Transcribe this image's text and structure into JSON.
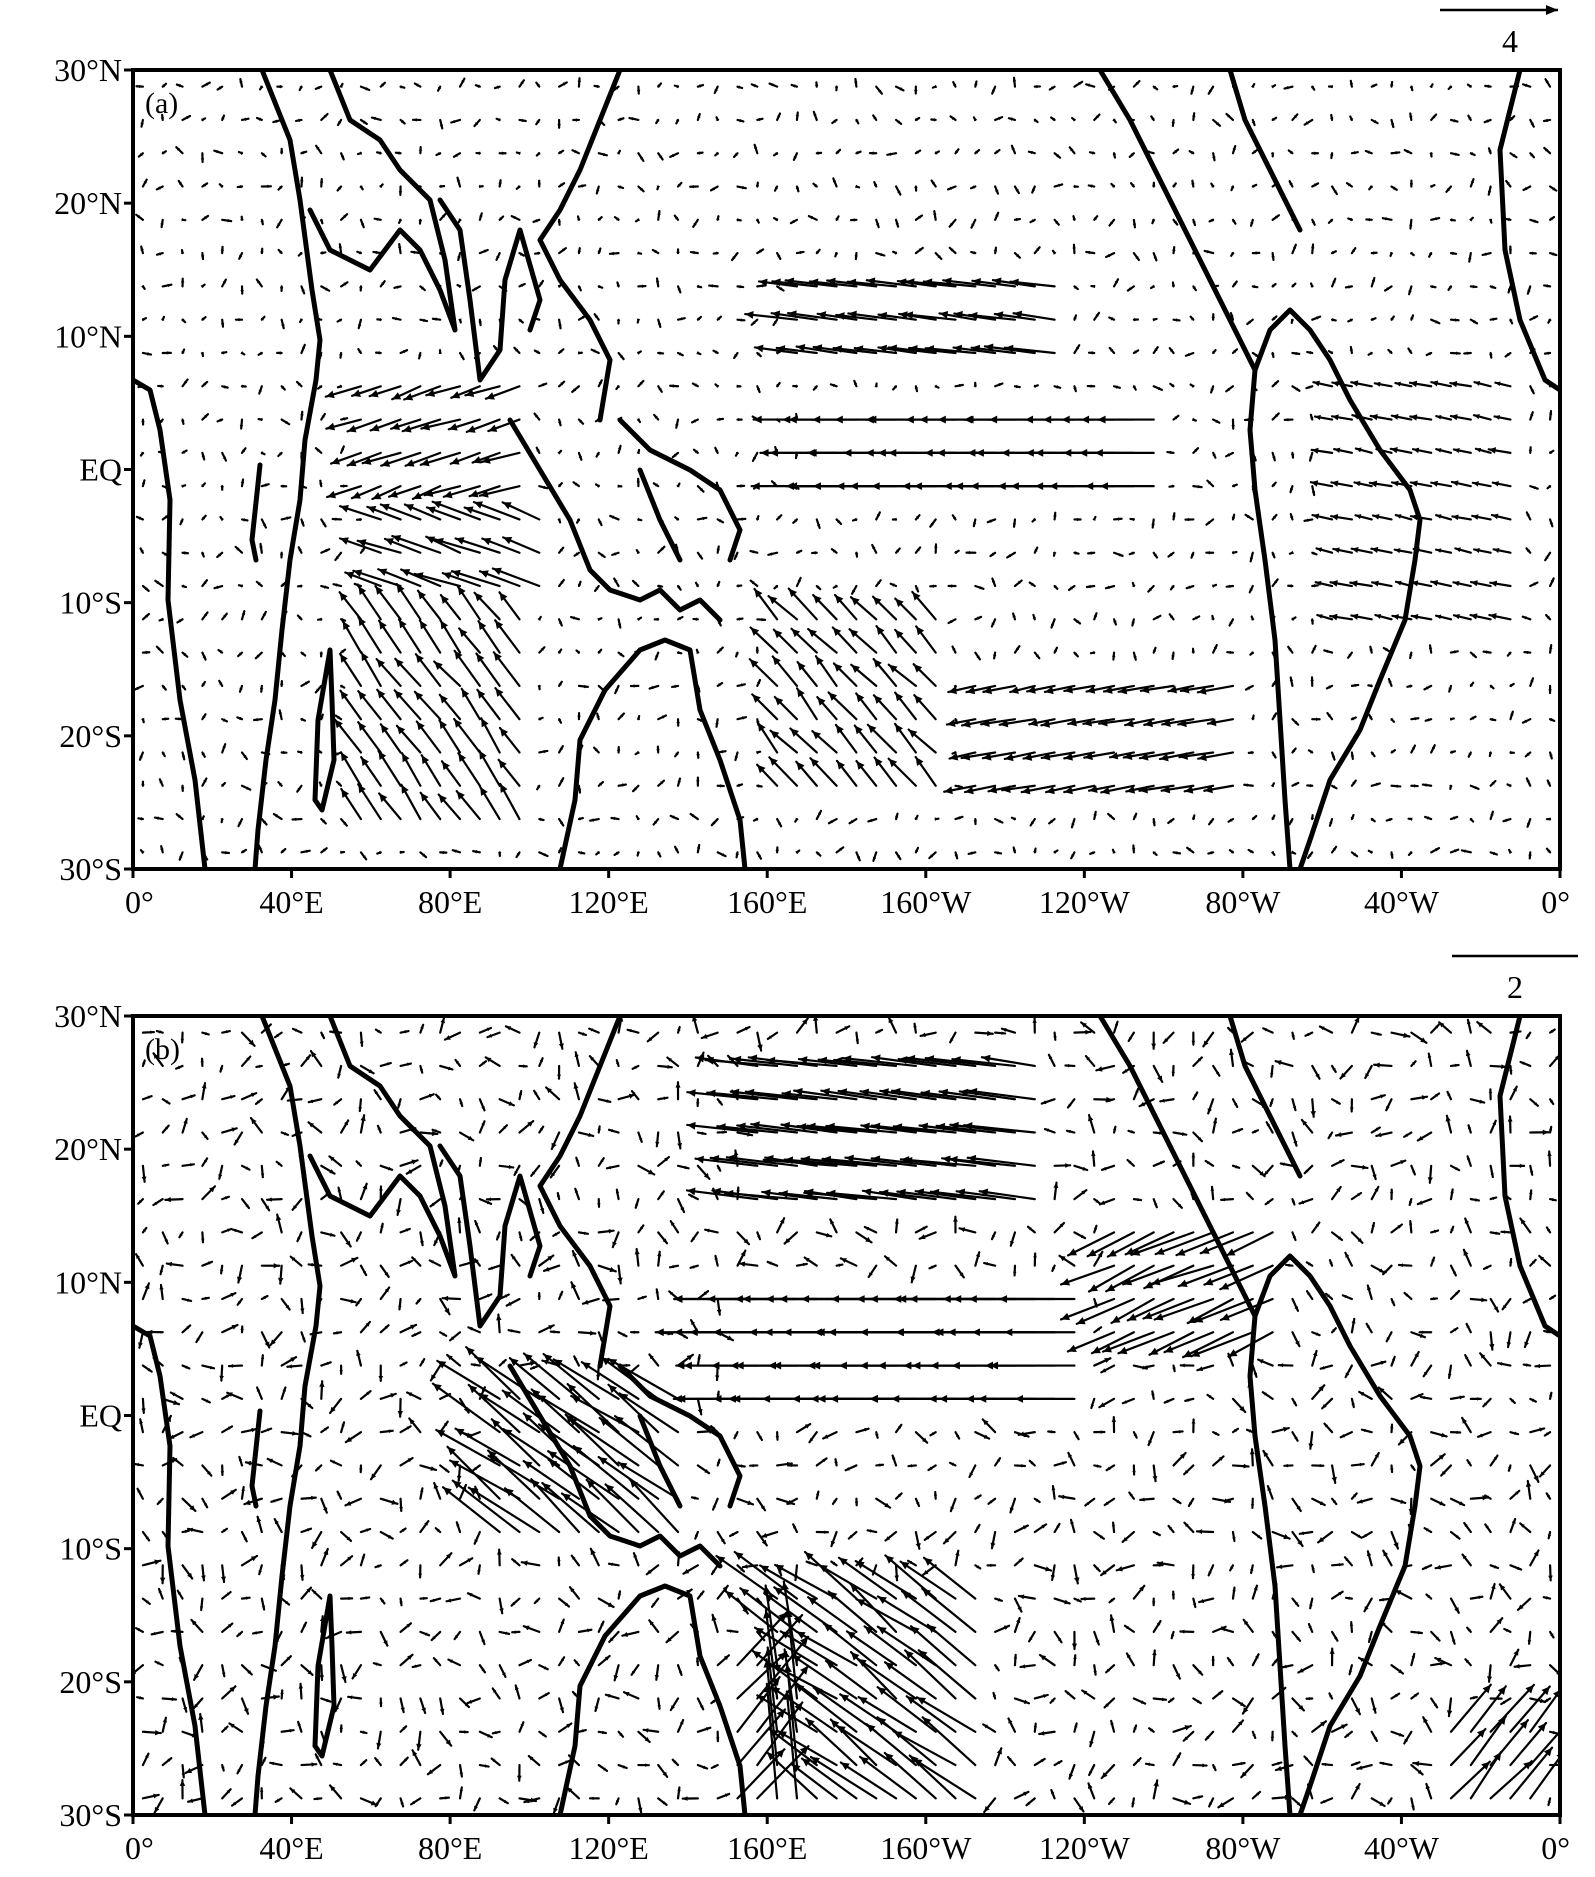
{
  "chart_data": [
    {
      "type": "vector-field",
      "panel_label": "(a)",
      "reference_vector": {
        "value": "4",
        "length": 4
      },
      "x_ticks": [
        "0°",
        "40°E",
        "80°E",
        "120°E",
        "160°E",
        "160°W",
        "120°W",
        "80°W",
        "40°W",
        "0°"
      ],
      "y_ticks": [
        "30°N",
        "20°N",
        "10°N",
        "EQ",
        "10°S",
        "20°S",
        "30°S"
      ],
      "xlim": [
        0,
        360
      ],
      "ylim": [
        -30,
        30
      ],
      "grid": false,
      "wind_features": [
        {
          "lon": [
            55,
            100
          ],
          "lat": [
            -2,
            8
          ],
          "u": -1.8,
          "v": -0.6
        },
        {
          "lon": [
            60,
            105
          ],
          "lat": [
            -9,
            -2
          ],
          "u": -2.2,
          "v": 0.8
        },
        {
          "lon": [
            55,
            100
          ],
          "lat": [
            -28,
            -10
          ],
          "u": -1.2,
          "v": 1.6
        },
        {
          "lon": [
            170,
            260
          ],
          "lat": [
            -3,
            6
          ],
          "u": -3.2,
          "v": 0.0
        },
        {
          "lon": [
            165,
            235
          ],
          "lat": [
            8,
            15
          ],
          "u": -2.4,
          "v": 0.3
        },
        {
          "lon": [
            160,
            205
          ],
          "lat": [
            -25,
            -10
          ],
          "u": -1.3,
          "v": 1.4
        },
        {
          "lon": [
            210,
            280
          ],
          "lat": [
            -25,
            -15
          ],
          "u": -1.6,
          "v": -0.3
        },
        {
          "lon": [
            300,
            350
          ],
          "lat": [
            -12,
            8
          ],
          "u": -1.0,
          "v": 0.2
        }
      ]
    },
    {
      "type": "vector-field",
      "panel_label": "(b)",
      "reference_vector": {
        "value": "2",
        "length": 2
      },
      "x_ticks": [
        "0°",
        "40°E",
        "80°E",
        "120°E",
        "160°E",
        "160°W",
        "120°W",
        "80°W",
        "40°W",
        "0°"
      ],
      "y_ticks": [
        "30°N",
        "20°N",
        "10°N",
        "EQ",
        "10°S",
        "20°S",
        "30°S"
      ],
      "xlim": [
        0,
        360
      ],
      "ylim": [
        -30,
        30
      ],
      "grid": false,
      "wind_features": [
        {
          "lon": [
            155,
            230
          ],
          "lat": [
            15,
            28
          ],
          "u": -1.7,
          "v": 0.2
        },
        {
          "lon": [
            150,
            240
          ],
          "lat": [
            0,
            10
          ],
          "u": -2.0,
          "v": 0.0
        },
        {
          "lon": [
            90,
            140
          ],
          "lat": [
            -10,
            2
          ],
          "u": -1.6,
          "v": 1.2
        },
        {
          "lon": [
            160,
            215
          ],
          "lat": [
            -30,
            -12
          ],
          "u": -1.5,
          "v": 1.1
        },
        {
          "lon": [
            150,
            170
          ],
          "lat": [
            -30,
            -18
          ],
          "u": 1.2,
          "v": 1.5
        },
        {
          "lon": [
            245,
            290
          ],
          "lat": [
            5,
            15
          ],
          "u": -1.4,
          "v": -0.6
        },
        {
          "lon": [
            330,
            355
          ],
          "lat": [
            -30,
            -22
          ],
          "u": 1.0,
          "v": 1.2
        }
      ]
    }
  ]
}
